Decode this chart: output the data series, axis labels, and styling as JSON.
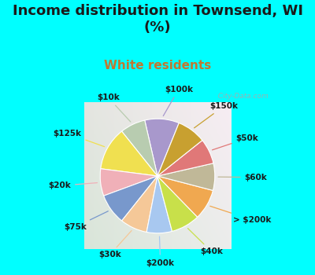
{
  "title": "Income distribution in Townsend, WI\n(%)",
  "subtitle": "White residents",
  "bg_cyan": "#00FFFF",
  "bg_chart_color": "#d8ede0",
  "slices": [
    {
      "label": "$100k",
      "value": 9.5,
      "color": "#a898cc"
    },
    {
      "label": "$10k",
      "value": 7.0,
      "color": "#b8ccb0"
    },
    {
      "label": "$125k",
      "value": 12.0,
      "color": "#f0e050"
    },
    {
      "label": "$20k",
      "value": 7.5,
      "color": "#f0b0b8"
    },
    {
      "label": "$75k",
      "value": 8.5,
      "color": "#7898cc"
    },
    {
      "label": "$30k",
      "value": 7.5,
      "color": "#f5c898"
    },
    {
      "label": "$200k",
      "value": 7.0,
      "color": "#a8c8f0"
    },
    {
      "label": "$40k",
      "value": 8.0,
      "color": "#c8e04a"
    },
    {
      "label": "> $200k",
      "value": 8.5,
      "color": "#f0a850"
    },
    {
      "label": "$60k",
      "value": 7.5,
      "color": "#c0b898"
    },
    {
      "label": "$50k",
      "value": 7.0,
      "color": "#e07878"
    },
    {
      "label": "$150k",
      "value": 8.0,
      "color": "#c8a030"
    }
  ],
  "watermark": "City-Data.com",
  "label_fontsize": 7.5,
  "title_fontsize": 13,
  "subtitle_fontsize": 11,
  "subtitle_color": "#c07830",
  "title_color": "#1a1a1a"
}
